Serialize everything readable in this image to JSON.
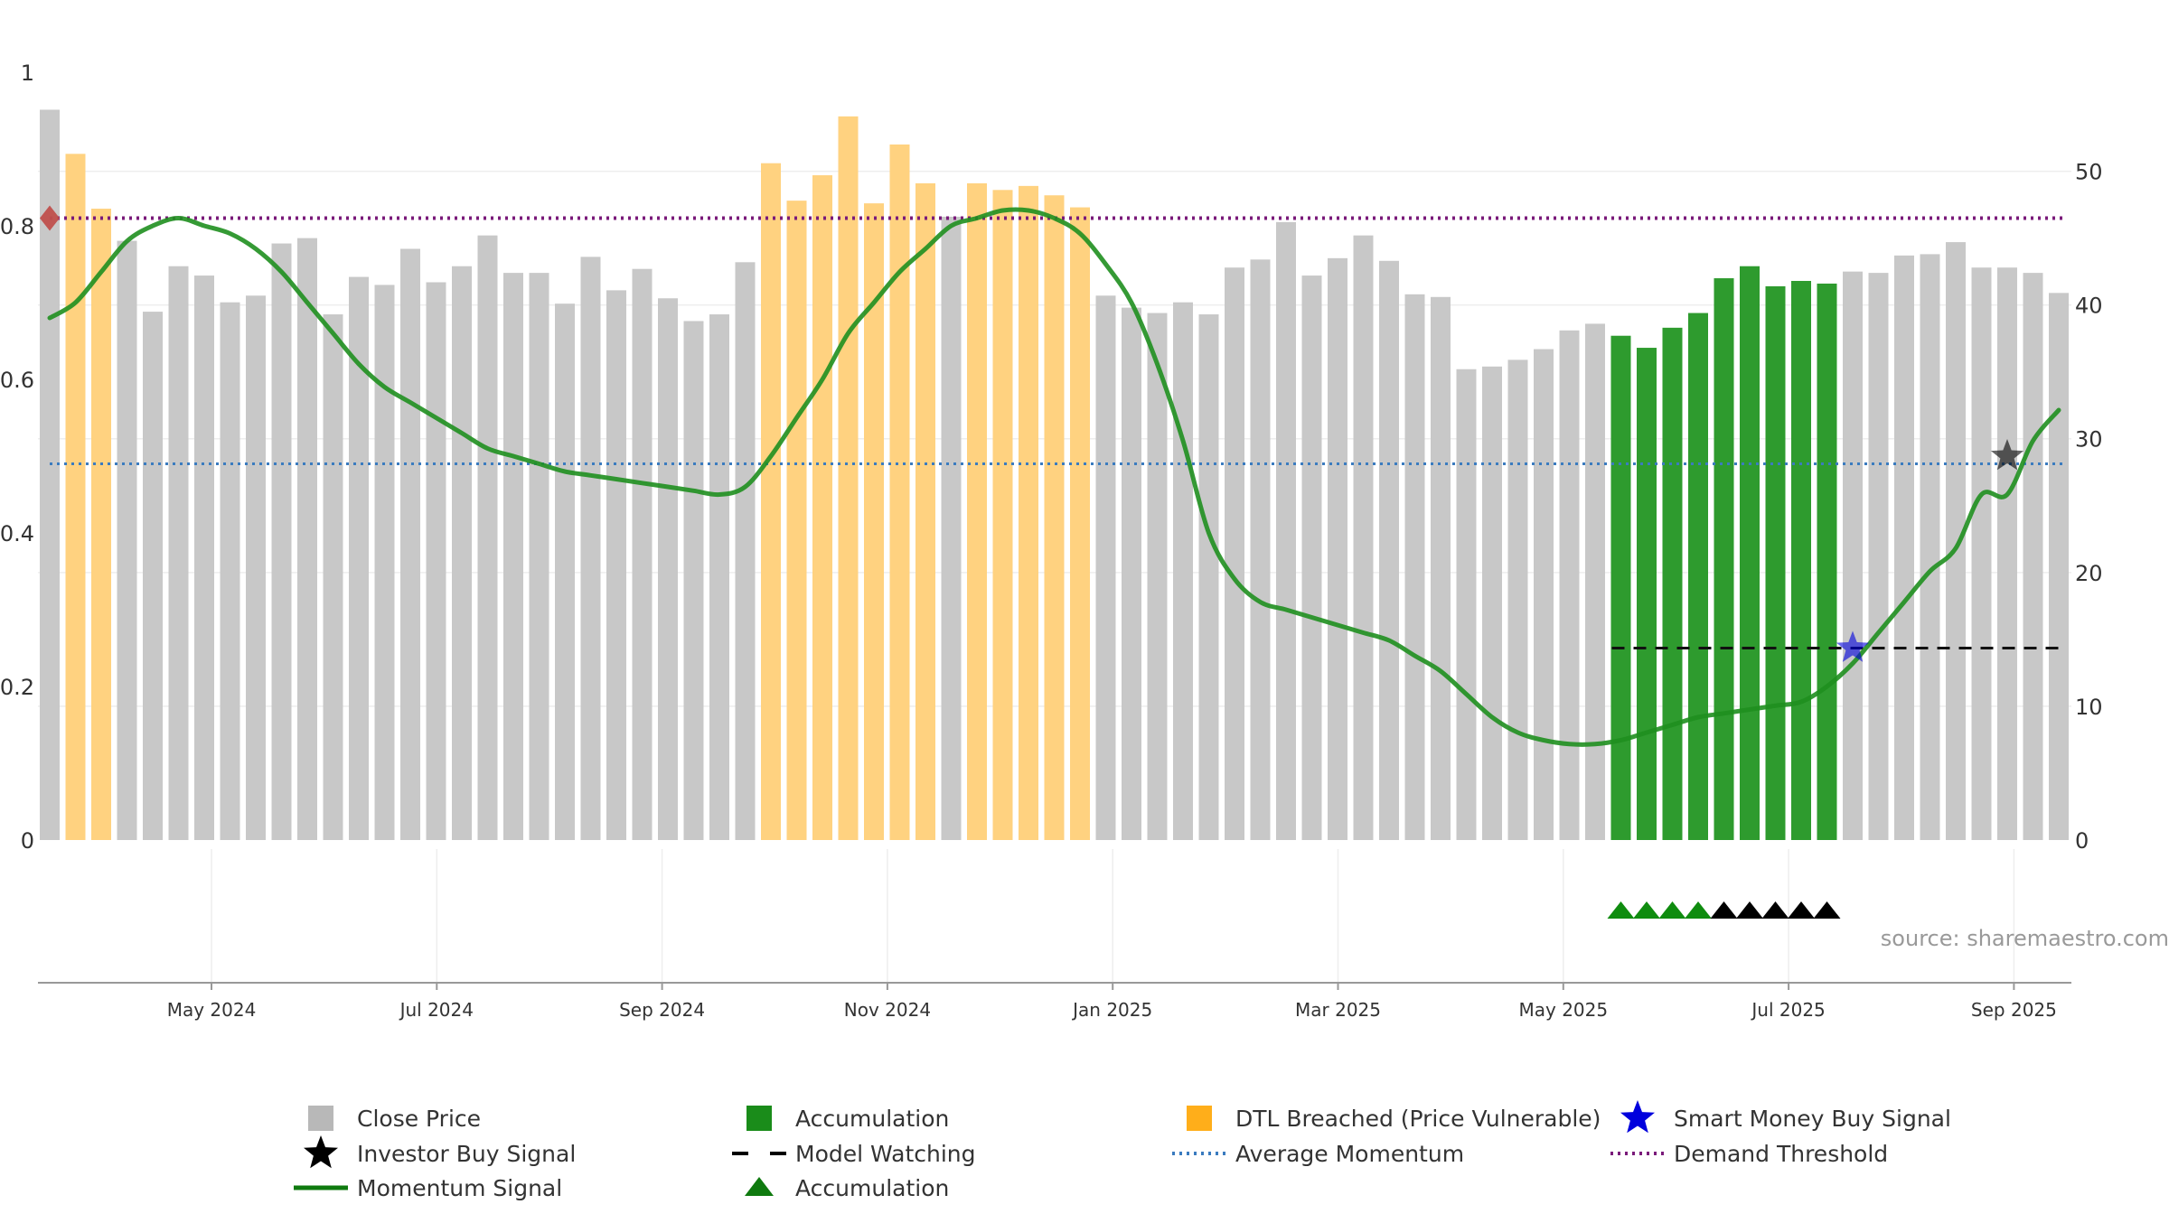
{
  "chart_data": {
    "type": "bar",
    "title": "",
    "xlabel": "",
    "ylabel": "",
    "x_axis": {
      "tick_labels": [
        "May 2024",
        "Jul 2024",
        "Sep 2024",
        "Nov 2024",
        "Jan 2025",
        "Mar 2025",
        "May 2025",
        "Jul 2025",
        "Sep 2025"
      ]
    },
    "y_left": {
      "range": [
        0,
        1
      ],
      "tick_labels": [
        "0",
        "0.2",
        "0.4",
        "0.6",
        "0.8",
        "1"
      ]
    },
    "y_right": {
      "range": [
        0,
        57.4
      ],
      "tick_labels": [
        "0",
        "10",
        "20",
        "30",
        "40",
        "50"
      ]
    },
    "grid": true,
    "legend_position": "bottom",
    "source": "source: sharemaestro.com",
    "colors": {
      "close_price": "#c8c8c8",
      "accumulation_bar": "#2e9b2e",
      "dtl_breached_bar": "#ffd280",
      "momentum_line": "#1f8f1f",
      "average_momentum": "#3a7bbf",
      "demand_threshold": "#7a1a7a",
      "smart_money_star": "#0000dd",
      "investor_star": "#000000",
      "model_watching": "#111111",
      "demand_marker": "#c0504d"
    },
    "bars": {
      "values": [
        54.6,
        51.3,
        47.2,
        44.8,
        39.5,
        42.9,
        42.2,
        40.2,
        40.7,
        44.6,
        45.0,
        39.3,
        42.1,
        41.5,
        44.2,
        41.7,
        42.9,
        45.2,
        42.4,
        42.4,
        40.1,
        43.6,
        41.1,
        42.7,
        40.5,
        38.8,
        39.3,
        43.2,
        50.6,
        47.8,
        49.7,
        54.1,
        47.6,
        52.0,
        49.1,
        46.6,
        49.1,
        48.6,
        48.9,
        48.2,
        47.3,
        40.7,
        39.8,
        39.4,
        40.2,
        39.3,
        42.8,
        43.4,
        46.2,
        42.2,
        43.5,
        45.2,
        43.3,
        40.8,
        40.6,
        35.2,
        35.4,
        35.9,
        36.7,
        38.1,
        38.6,
        37.7,
        36.8,
        38.3,
        39.4,
        42.0,
        42.9,
        41.4,
        41.8,
        41.6,
        42.5,
        42.4,
        43.7,
        43.8,
        44.7,
        42.8,
        42.8,
        42.4,
        40.9
      ],
      "categories": [
        "close",
        "dtl",
        "dtl",
        "close",
        "close",
        "close",
        "close",
        "close",
        "close",
        "close",
        "close",
        "close",
        "close",
        "close",
        "close",
        "close",
        "close",
        "close",
        "close",
        "close",
        "close",
        "close",
        "close",
        "close",
        "close",
        "close",
        "close",
        "close",
        "dtl",
        "dtl",
        "dtl",
        "dtl",
        "dtl",
        "dtl",
        "dtl",
        "close",
        "dtl",
        "dtl",
        "dtl",
        "dtl",
        "dtl",
        "close",
        "close",
        "close",
        "close",
        "close",
        "close",
        "close",
        "close",
        "close",
        "close",
        "close",
        "close",
        "close",
        "close",
        "close",
        "close",
        "close",
        "close",
        "close",
        "close",
        "acc",
        "acc",
        "acc",
        "acc",
        "acc",
        "acc",
        "acc",
        "acc",
        "acc",
        "close",
        "close",
        "close",
        "close",
        "close",
        "close",
        "close",
        "close",
        "close"
      ]
    },
    "momentum_series": [
      0.68,
      0.7,
      0.74,
      0.78,
      0.8,
      0.81,
      0.8,
      0.79,
      0.77,
      0.74,
      0.7,
      0.66,
      0.62,
      0.59,
      0.57,
      0.55,
      0.53,
      0.51,
      0.5,
      0.49,
      0.48,
      0.475,
      0.47,
      0.465,
      0.46,
      0.455,
      0.45,
      0.46,
      0.5,
      0.55,
      0.6,
      0.66,
      0.7,
      0.74,
      0.77,
      0.8,
      0.81,
      0.82,
      0.82,
      0.81,
      0.79,
      0.75,
      0.7,
      0.62,
      0.52,
      0.4,
      0.34,
      0.31,
      0.3,
      0.29,
      0.28,
      0.27,
      0.26,
      0.24,
      0.22,
      0.19,
      0.16,
      0.14,
      0.13,
      0.125,
      0.125,
      0.13,
      0.14,
      0.15,
      0.16,
      0.165,
      0.17,
      0.175,
      0.18,
      0.2,
      0.23,
      0.27,
      0.31,
      0.35,
      0.38,
      0.45,
      0.45,
      0.52,
      0.56
    ],
    "average_momentum": 0.49,
    "demand_threshold": 0.81,
    "model_watching_level": 0.25,
    "model_watching_range": [
      61,
      78
    ],
    "smart_money_signal": {
      "index": 70,
      "value": 0.25
    },
    "investor_signal": {
      "index": 76,
      "value": 0.5
    },
    "demand_marker": {
      "index": 0,
      "value": 0.81
    },
    "accumulation_triangles": {
      "green": [
        61,
        62,
        63,
        64
      ],
      "black": [
        65,
        66,
        67,
        68,
        69
      ]
    },
    "legend": [
      {
        "label": "Close Price",
        "symbol": "square",
        "color": "#b8b8b8"
      },
      {
        "label": "Accumulation",
        "symbol": "square",
        "color": "#1a8c1a"
      },
      {
        "label": "DTL Breached (Price Vulnerable)",
        "symbol": "square",
        "color": "#ffae1a"
      },
      {
        "label": "Smart Money Buy Signal",
        "symbol": "star",
        "color": "#0000dd"
      },
      {
        "label": "Investor Buy Signal",
        "symbol": "star",
        "color": "#000000"
      },
      {
        "label": "Model Watching",
        "symbol": "dash",
        "color": "#000000"
      },
      {
        "label": "Average Momentum",
        "symbol": "dot",
        "color": "#3a7bbf"
      },
      {
        "label": "Demand Threshold",
        "symbol": "dot",
        "color": "#7a1a7a"
      },
      {
        "label": "Momentum Signal",
        "symbol": "line",
        "color": "#0f7a0f"
      },
      {
        "label": "Accumulation",
        "symbol": "triangle",
        "color": "#0f7a0f"
      }
    ]
  }
}
